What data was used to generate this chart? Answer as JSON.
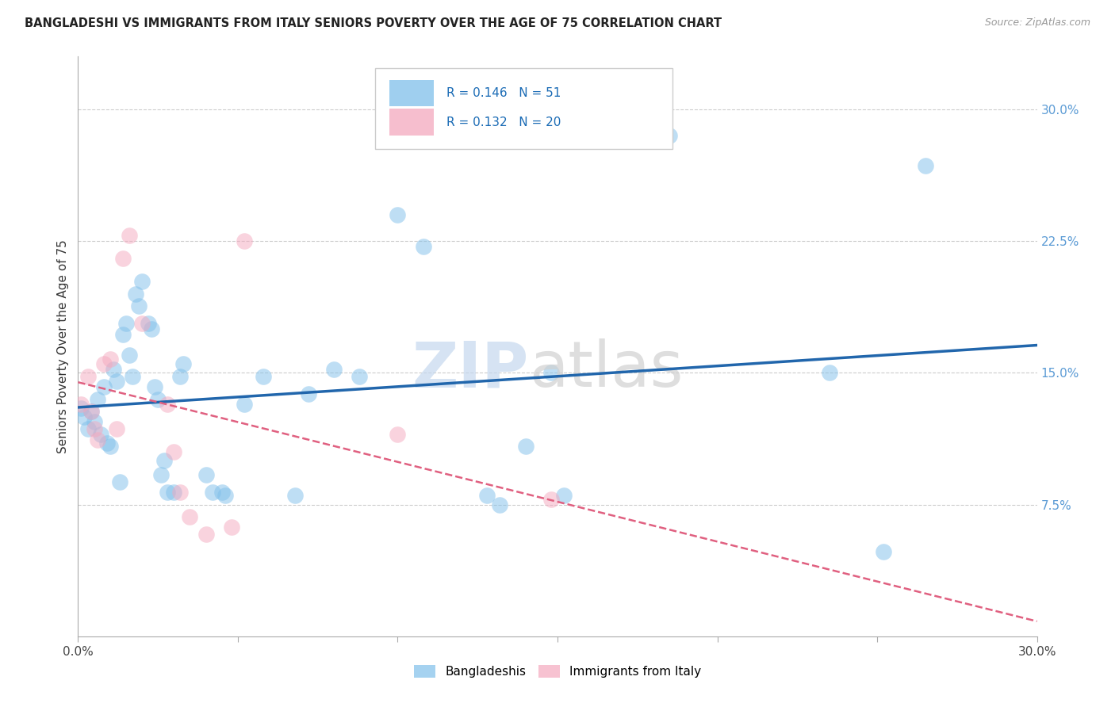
{
  "title": "BANGLADESHI VS IMMIGRANTS FROM ITALY SENIORS POVERTY OVER THE AGE OF 75 CORRELATION CHART",
  "source": "Source: ZipAtlas.com",
  "ylabel": "Seniors Poverty Over the Age of 75",
  "xmin": 0.0,
  "xmax": 0.3,
  "ymin": 0.0,
  "ymax": 0.33,
  "grid_color": "#cccccc",
  "background_color": "#ffffff",
  "blue_color": "#7fbfea",
  "pink_color": "#f4a8be",
  "blue_line_color": "#2166ac",
  "pink_line_color": "#e06080",
  "blue_R": 0.146,
  "blue_N": 51,
  "pink_R": 0.132,
  "pink_N": 20,
  "blue_data": [
    [
      0.001,
      0.13
    ],
    [
      0.002,
      0.125
    ],
    [
      0.003,
      0.118
    ],
    [
      0.004,
      0.128
    ],
    [
      0.005,
      0.122
    ],
    [
      0.006,
      0.135
    ],
    [
      0.007,
      0.115
    ],
    [
      0.008,
      0.142
    ],
    [
      0.009,
      0.11
    ],
    [
      0.01,
      0.108
    ],
    [
      0.011,
      0.152
    ],
    [
      0.012,
      0.145
    ],
    [
      0.013,
      0.088
    ],
    [
      0.014,
      0.172
    ],
    [
      0.015,
      0.178
    ],
    [
      0.016,
      0.16
    ],
    [
      0.017,
      0.148
    ],
    [
      0.018,
      0.195
    ],
    [
      0.019,
      0.188
    ],
    [
      0.02,
      0.202
    ],
    [
      0.022,
      0.178
    ],
    [
      0.023,
      0.175
    ],
    [
      0.024,
      0.142
    ],
    [
      0.025,
      0.135
    ],
    [
      0.026,
      0.092
    ],
    [
      0.027,
      0.1
    ],
    [
      0.028,
      0.082
    ],
    [
      0.03,
      0.082
    ],
    [
      0.032,
      0.148
    ],
    [
      0.033,
      0.155
    ],
    [
      0.04,
      0.092
    ],
    [
      0.042,
      0.082
    ],
    [
      0.045,
      0.082
    ],
    [
      0.046,
      0.08
    ],
    [
      0.052,
      0.132
    ],
    [
      0.058,
      0.148
    ],
    [
      0.068,
      0.08
    ],
    [
      0.072,
      0.138
    ],
    [
      0.08,
      0.152
    ],
    [
      0.088,
      0.148
    ],
    [
      0.1,
      0.24
    ],
    [
      0.108,
      0.222
    ],
    [
      0.128,
      0.08
    ],
    [
      0.132,
      0.075
    ],
    [
      0.14,
      0.108
    ],
    [
      0.148,
      0.15
    ],
    [
      0.152,
      0.08
    ],
    [
      0.185,
      0.285
    ],
    [
      0.235,
      0.15
    ],
    [
      0.252,
      0.048
    ],
    [
      0.265,
      0.268
    ]
  ],
  "pink_data": [
    [
      0.001,
      0.132
    ],
    [
      0.003,
      0.148
    ],
    [
      0.004,
      0.128
    ],
    [
      0.005,
      0.118
    ],
    [
      0.006,
      0.112
    ],
    [
      0.008,
      0.155
    ],
    [
      0.01,
      0.158
    ],
    [
      0.012,
      0.118
    ],
    [
      0.014,
      0.215
    ],
    [
      0.016,
      0.228
    ],
    [
      0.02,
      0.178
    ],
    [
      0.028,
      0.132
    ],
    [
      0.03,
      0.105
    ],
    [
      0.032,
      0.082
    ],
    [
      0.035,
      0.068
    ],
    [
      0.04,
      0.058
    ],
    [
      0.048,
      0.062
    ],
    [
      0.052,
      0.225
    ],
    [
      0.1,
      0.115
    ],
    [
      0.148,
      0.078
    ]
  ]
}
